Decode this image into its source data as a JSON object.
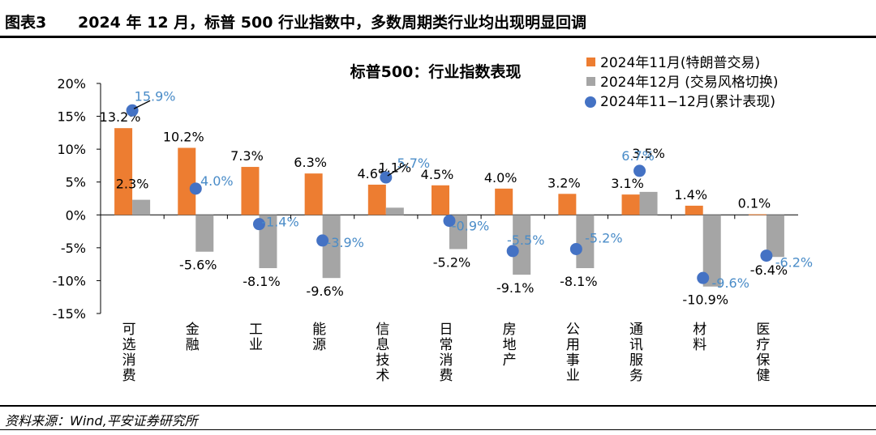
{
  "header": {
    "figure_number": "图表3",
    "title": "2024 年 12 月，标普 500 行业指数中，多数周期类行业均出现明显回调"
  },
  "source": "资料来源：Wind,平安证券研究所",
  "chart_data": {
    "type": "bar",
    "title": "标普500：行业指数表现",
    "categories": [
      "可选消费",
      "金融",
      "工业",
      "能源",
      "信息技术",
      "日常消费",
      "房地产",
      "公用事业",
      "通讯服务",
      "材料",
      "医疗保健"
    ],
    "series": [
      {
        "name": "2024年11月(特朗普交易)",
        "kind": "bar",
        "color": "#ed7d31",
        "values": [
          13.2,
          10.2,
          7.3,
          6.3,
          4.6,
          4.5,
          4.0,
          3.2,
          3.1,
          1.4,
          0.1
        ],
        "labels": [
          "13.2%",
          "10.2%",
          "7.3%",
          "6.3%",
          "4.6%",
          "4.5%",
          "4.0%",
          "3.2%",
          "3.1%",
          "1.4%",
          "0.1%"
        ]
      },
      {
        "name": "2024年12月 (交易风格切换)",
        "kind": "bar",
        "color": "#a5a5a5",
        "values": [
          2.3,
          -5.6,
          -8.1,
          -9.6,
          1.1,
          -5.2,
          -9.1,
          -8.1,
          3.5,
          -10.9,
          -6.4
        ],
        "labels": [
          "2.3%",
          "-5.6%",
          "-8.1%",
          "-9.6%",
          "1.1%",
          "-5.2%",
          "-9.1%",
          "-8.1%",
          "3.5%",
          "-10.9%",
          "-6.4%"
        ]
      },
      {
        "name": "2024年11−12月(累计表现)",
        "kind": "scatter",
        "color": "#4472c4",
        "values": [
          15.9,
          4.0,
          -1.4,
          -3.9,
          5.7,
          -0.9,
          -5.5,
          -5.2,
          6.7,
          -9.6,
          -6.2
        ],
        "labels": [
          "15.9%",
          "4.0%",
          "-1.4%",
          "-3.9%",
          "5.7%",
          "-0.9%",
          "-5.5%",
          "-5.2%",
          "6.7%",
          "-9.6%",
          "-6.2%"
        ]
      }
    ],
    "ylim": [
      -15,
      20
    ],
    "yticks": [
      20,
      15,
      10,
      5,
      0,
      -5,
      -10,
      -15
    ],
    "ytick_labels": [
      "20%",
      "15%",
      "10%",
      "5%",
      "0%",
      "-5%",
      "-10%",
      "-15%"
    ],
    "legend_position": "top-right",
    "grid": false
  }
}
